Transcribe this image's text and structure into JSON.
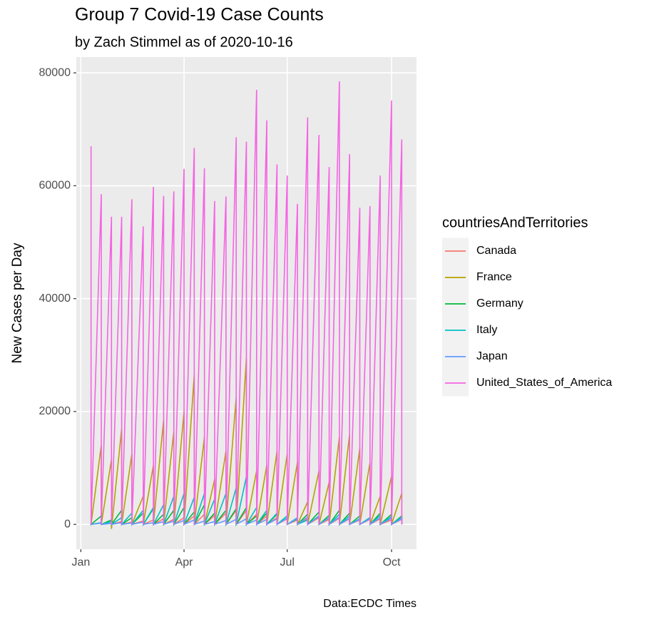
{
  "chart_data": {
    "type": "line",
    "title": "Group 7 Covid-19 Case Counts",
    "subtitle": "by Zach Stimmel as of 2020-10-16",
    "y_label": "New Cases per Day",
    "caption": "Data:ECDC Times",
    "legend_title": "countriesAndTerritories",
    "grid": true,
    "xlim": [
      -4,
      296
    ],
    "ylim": [
      -4400,
      82800
    ],
    "xticks": [
      {
        "value": 0,
        "label": "Jan"
      },
      {
        "value": 91,
        "label": "Apr"
      },
      {
        "value": 182,
        "label": "Jul"
      },
      {
        "value": 274,
        "label": "Oct"
      }
    ],
    "yticks": [
      0,
      20000,
      40000,
      60000,
      80000
    ],
    "x": [
      9,
      9,
      18,
      18,
      27,
      27,
      36,
      36,
      45,
      45,
      55,
      55,
      64,
      64,
      73,
      73,
      82,
      82,
      91,
      91,
      100,
      100,
      109,
      109,
      118,
      118,
      128,
      128,
      137,
      137,
      146,
      146,
      155,
      155,
      164,
      164,
      173,
      173,
      182,
      182,
      191,
      191,
      200,
      200,
      210,
      210,
      219,
      219,
      228,
      228,
      237,
      237,
      246,
      246,
      255,
      255,
      264,
      264,
      274,
      274,
      283,
      283
    ],
    "series": [
      {
        "name": "Canada",
        "color": "#F8766D",
        "values": [
          100,
          0,
          300,
          0,
          200,
          0,
          500,
          0,
          400,
          0,
          600,
          0,
          800,
          0,
          1000,
          0,
          900,
          0,
          1200,
          0,
          1500,
          0,
          1800,
          0,
          1600,
          0,
          2000,
          0,
          2500,
          0,
          2500,
          0,
          1800,
          0,
          1500,
          0,
          1200,
          0,
          1000,
          0,
          800,
          0,
          1000,
          0,
          1200,
          0,
          900,
          0,
          1100,
          0,
          1000,
          0,
          800,
          0,
          900,
          0,
          1000,
          0,
          800,
          0,
          900,
          0
        ]
      },
      {
        "name": "France",
        "color": "#B79F00",
        "values": [
          300,
          0,
          14000,
          0,
          11500,
          -800,
          17000,
          0,
          12500,
          0,
          5000,
          0,
          10500,
          0,
          18500,
          0,
          16500,
          0,
          20000,
          0,
          26500,
          0,
          15500,
          0,
          8000,
          0,
          13000,
          0,
          22500,
          0,
          29500,
          0,
          9500,
          0,
          10500,
          0,
          13000,
          0,
          12500,
          0,
          11000,
          0,
          4000,
          0,
          9500,
          0,
          7500,
          0,
          15500,
          0,
          16000,
          0,
          13500,
          0,
          11000,
          0,
          5000,
          0,
          8500,
          0,
          5500,
          0
        ]
      },
      {
        "name": "Germany",
        "color": "#00BA38",
        "values": [
          200,
          0,
          1500,
          0,
          800,
          0,
          2500,
          0,
          1200,
          0,
          2000,
          0,
          2800,
          0,
          1800,
          0,
          2500,
          0,
          3000,
          0,
          2200,
          0,
          3500,
          0,
          2000,
          0,
          2500,
          0,
          2800,
          0,
          3000,
          0,
          1500,
          0,
          2000,
          0,
          1800,
          0,
          1500,
          0,
          1200,
          0,
          1800,
          0,
          2200,
          0,
          1600,
          0,
          2500,
          0,
          2000,
          0,
          1500,
          0,
          1200,
          0,
          2000,
          0,
          1800,
          0,
          1500,
          0
        ]
      },
      {
        "name": "Italy",
        "color": "#00BFC4",
        "values": [
          100,
          0,
          300,
          0,
          500,
          0,
          1200,
          0,
          2000,
          0,
          2500,
          0,
          3000,
          0,
          3500,
          0,
          5000,
          0,
          5500,
          0,
          4800,
          0,
          5500,
          0,
          4500,
          0,
          5500,
          0,
          6500,
          0,
          8500,
          0,
          3000,
          0,
          2500,
          0,
          2000,
          0,
          1500,
          0,
          1000,
          0,
          800,
          0,
          1500,
          0,
          1200,
          0,
          1800,
          0,
          1500,
          0,
          1000,
          0,
          1200,
          0,
          1600,
          0,
          1400,
          0,
          1300,
          0
        ]
      },
      {
        "name": "Japan",
        "color": "#619CFF",
        "values": [
          100,
          0,
          200,
          0,
          150,
          0,
          300,
          0,
          250,
          0,
          400,
          0,
          300,
          0,
          500,
          0,
          600,
          0,
          700,
          0,
          800,
          0,
          600,
          0,
          500,
          0,
          700,
          0,
          900,
          0,
          1000,
          0,
          800,
          0,
          900,
          0,
          1000,
          0,
          1100,
          0,
          1200,
          0,
          1300,
          0,
          1400,
          0,
          1200,
          0,
          1300,
          0,
          1100,
          0,
          900,
          0,
          1000,
          0,
          1200,
          0,
          1100,
          0,
          1000,
          0
        ]
      },
      {
        "name": "United_States_of_America",
        "color": "#F564E3",
        "values": [
          67000,
          0,
          58500,
          0,
          54500,
          0,
          54500,
          0,
          57600,
          0,
          52800,
          0,
          59800,
          0,
          58200,
          0,
          59000,
          0,
          63000,
          0,
          66700,
          0,
          63100,
          0,
          57300,
          0,
          58100,
          0,
          68600,
          0,
          67800,
          0,
          77000,
          0,
          71600,
          0,
          63800,
          0,
          61800,
          0,
          56800,
          0,
          72100,
          0,
          69000,
          0,
          63300,
          0,
          78500,
          0,
          65600,
          0,
          56100,
          0,
          56400,
          0,
          61800,
          0,
          75100,
          0,
          68200,
          0
        ]
      }
    ]
  }
}
